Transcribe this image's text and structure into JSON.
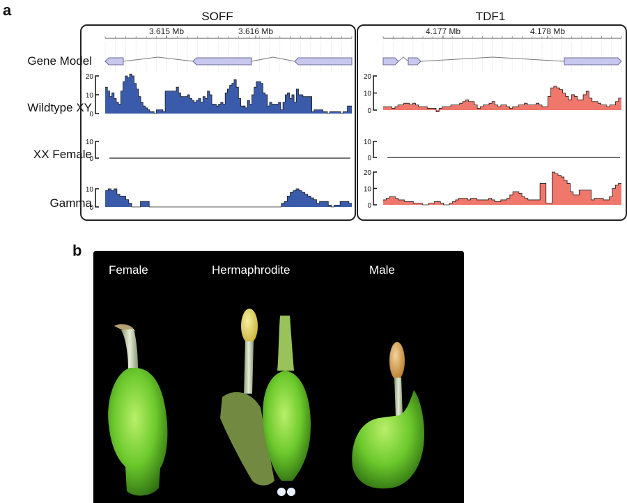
{
  "panel_a": {
    "letter": "a",
    "row_labels": [
      "Gene Model",
      "Wildtype XY",
      "XX Female",
      "Gamma"
    ],
    "colors": {
      "soff_fill": "#3a5baa",
      "tdf1_fill": "#f0776b",
      "gene_fill": "#c8c8ee",
      "gene_stroke": "#6a6a9a"
    }
  },
  "panel_b": {
    "letter": "b",
    "labels": [
      "Female",
      "Hermaphrodite",
      "Male"
    ]
  },
  "chart_data": [
    {
      "type": "area",
      "title": "SOFF",
      "coordinate_ticks": [
        "3.615 Mb",
        "3.616 Mb"
      ],
      "gene_model": {
        "exons": 3,
        "strand": "minus"
      },
      "tracks": [
        {
          "name": "Wildtype XY",
          "ylim": [
            0,
            20
          ],
          "yticks": [
            0,
            10,
            20
          ],
          "values": [
            14,
            12,
            9,
            11,
            8,
            6,
            5,
            12,
            17,
            20,
            19,
            21,
            20,
            16,
            13,
            9,
            6,
            4,
            3,
            2,
            1,
            1,
            0,
            2,
            2,
            2,
            1,
            12,
            12,
            12,
            12,
            12,
            14,
            11,
            9,
            9,
            9,
            10,
            8,
            7,
            6,
            7,
            8,
            6,
            9,
            8,
            12,
            10,
            5,
            5,
            4,
            5,
            6,
            5,
            11,
            13,
            15,
            16,
            18,
            14,
            8,
            4,
            4,
            3,
            7,
            5,
            10,
            14,
            17,
            17,
            16,
            11,
            10,
            4,
            6,
            5,
            5,
            5,
            6,
            2,
            6,
            10,
            11,
            8,
            10,
            6,
            13,
            10,
            10,
            9,
            9,
            9,
            9,
            1,
            2,
            2,
            2,
            2,
            1,
            1,
            0,
            1,
            1,
            1,
            1,
            1,
            0,
            1,
            1,
            4,
            4
          ]
        },
        {
          "name": "XX Female",
          "ylim": [
            0,
            10
          ],
          "yticks": [
            0,
            10
          ],
          "values": [
            0,
            0,
            0,
            0,
            0,
            0,
            0,
            0,
            0,
            0,
            0,
            0,
            0,
            0,
            0,
            0,
            0,
            0,
            0,
            0
          ]
        },
        {
          "name": "Gamma",
          "ylim": [
            0,
            10
          ],
          "yticks": [
            0,
            10
          ],
          "values": [
            9,
            10,
            9,
            10,
            7,
            6,
            6,
            4,
            2,
            0,
            0,
            0,
            3,
            3,
            3,
            0,
            0,
            0,
            0,
            0,
            0,
            0,
            0,
            0,
            0,
            0,
            0,
            0,
            0,
            0,
            0,
            0,
            0,
            0,
            0,
            0,
            0,
            0,
            0,
            0,
            0,
            0,
            0,
            0,
            0,
            0,
            0,
            0,
            0,
            0,
            0,
            0,
            0,
            0,
            0,
            0,
            0,
            0,
            0,
            0,
            2,
            3,
            6,
            8,
            9,
            10,
            9,
            8,
            7,
            6,
            5,
            4,
            2,
            3,
            3,
            3,
            1,
            0,
            1,
            1,
            3,
            3,
            3,
            2
          ]
        }
      ]
    },
    {
      "type": "area",
      "title": "TDF1",
      "coordinate_ticks": [
        "4.177 Mb",
        "4.178 Mb"
      ],
      "gene_model": {
        "exons": 3,
        "strand": "plus"
      },
      "tracks": [
        {
          "name": "Wildtype XY",
          "ylim": [
            0,
            20
          ],
          "yticks": [
            0,
            10,
            20
          ],
          "values": [
            2,
            2,
            2,
            1,
            2,
            3,
            3,
            4,
            4,
            3,
            4,
            3,
            2,
            2,
            2,
            1,
            1,
            1,
            -1,
            1,
            2,
            2,
            2,
            3,
            3,
            3,
            4,
            5,
            6,
            5,
            5,
            3,
            1,
            2,
            3,
            3,
            4,
            5,
            3,
            2,
            3,
            3,
            2,
            1,
            2,
            2,
            3,
            3,
            4,
            3,
            3,
            3,
            4,
            3,
            2,
            2,
            8,
            13,
            14,
            13,
            12,
            10,
            8,
            6,
            9,
            8,
            6,
            6,
            9,
            11,
            7,
            5,
            5,
            4,
            3,
            3,
            2,
            3,
            3,
            5,
            7
          ]
        },
        {
          "name": "XX Female",
          "ylim": [
            0,
            10
          ],
          "yticks": [
            0,
            10
          ],
          "values": [
            0,
            0,
            0,
            0,
            0,
            0,
            0,
            0,
            0,
            0,
            0,
            0,
            0,
            0,
            0,
            0,
            0,
            0,
            0,
            0
          ]
        },
        {
          "name": "Gamma",
          "ylim": [
            0,
            20
          ],
          "yticks": [
            0,
            10,
            20
          ],
          "values": [
            3,
            4,
            5,
            5,
            4,
            3,
            3,
            2,
            2,
            2,
            1,
            1,
            1,
            0,
            0,
            1,
            1,
            2,
            2,
            1,
            0,
            0,
            1,
            2,
            3,
            4,
            4,
            4,
            3,
            4,
            4,
            3,
            3,
            3,
            3,
            4,
            3,
            2,
            2,
            3,
            3,
            4,
            6,
            8,
            8,
            7,
            5,
            4,
            3,
            3,
            3,
            3,
            13,
            13,
            1,
            1,
            20,
            19,
            18,
            17,
            15,
            13,
            8,
            6,
            6,
            9,
            9,
            9,
            9,
            3,
            4,
            4,
            4,
            3,
            3,
            5,
            10,
            12,
            13
          ]
        }
      ]
    }
  ]
}
